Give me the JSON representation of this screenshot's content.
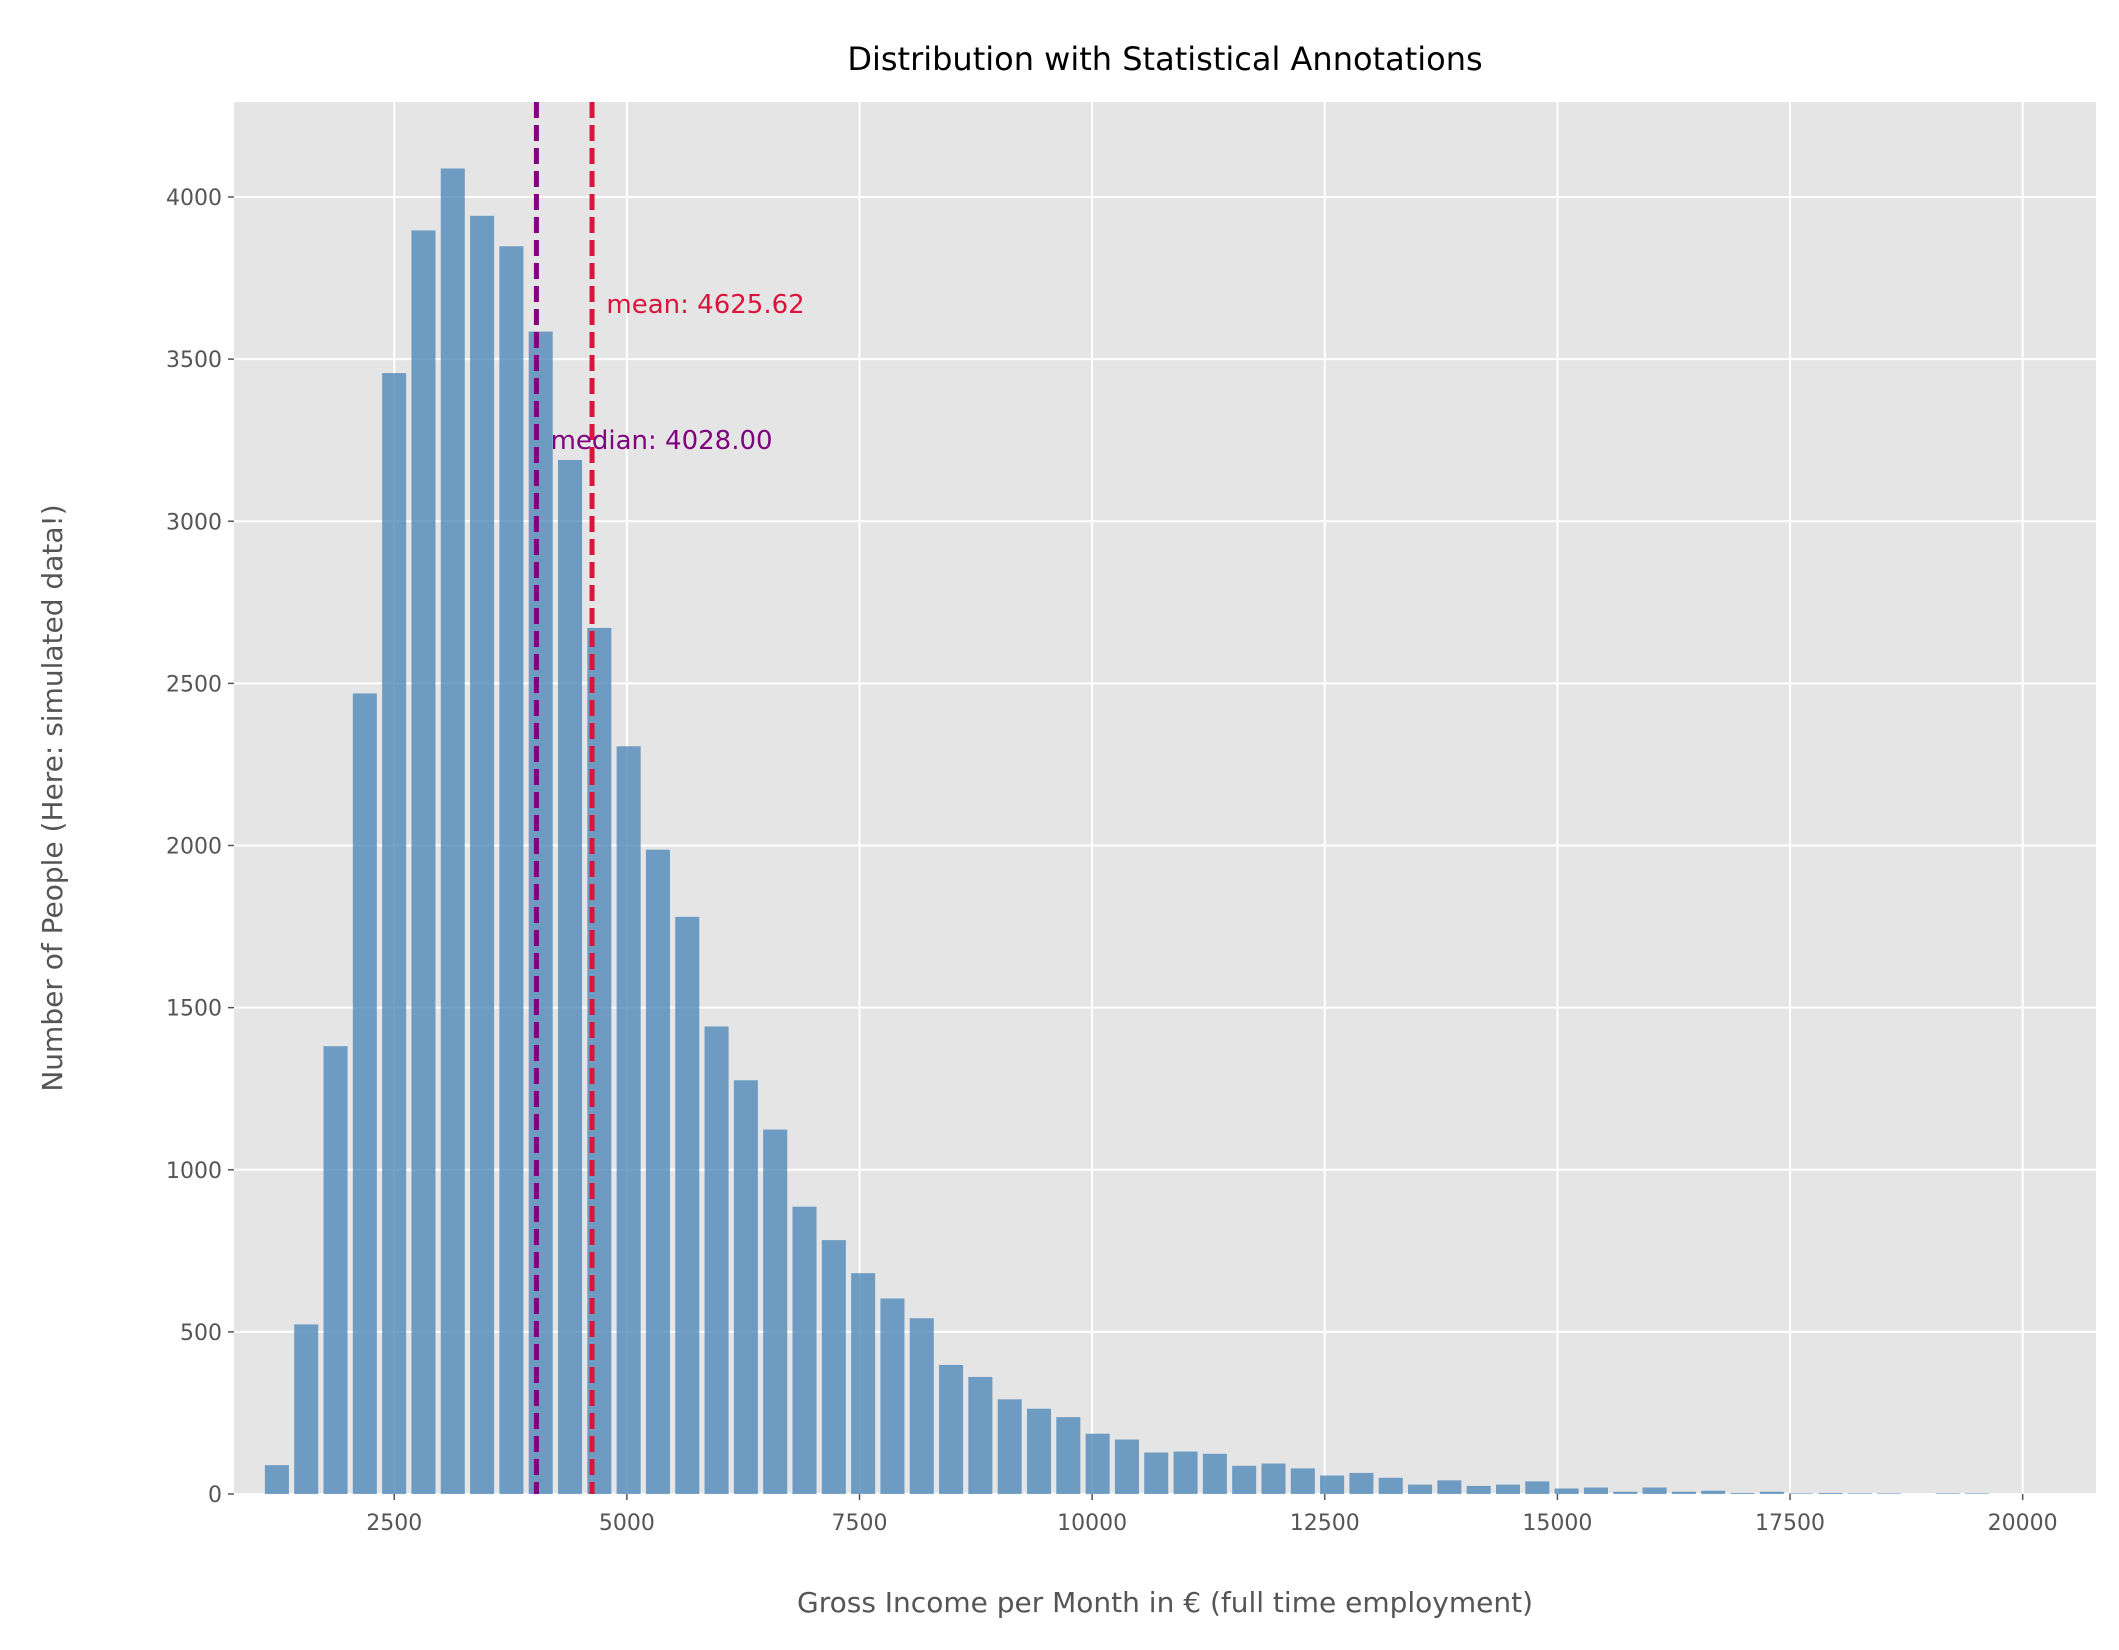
{
  "chart_data": {
    "type": "bar",
    "title": "Distribution with Statistical Annotations",
    "xlabel": "Gross Income per Month in € (full time employment)",
    "ylabel": "Number of People (Here: simulated data!)",
    "xlim": [
      778,
      20788
    ],
    "ylim": [
      0,
      4293
    ],
    "grid": true,
    "bin_width": 315,
    "x_ticks": [
      2500,
      5000,
      7500,
      10000,
      12500,
      15000,
      17500,
      20000
    ],
    "y_ticks": [
      0,
      500,
      1000,
      1500,
      2000,
      2500,
      3000,
      3500,
      4000
    ],
    "bin_centers": [
      1239,
      1554,
      1869,
      2184,
      2499,
      2814,
      3129,
      3444,
      3759,
      4074,
      4389,
      4704,
      5019,
      5334,
      5649,
      5964,
      6279,
      6594,
      6909,
      7224,
      7539,
      7854,
      8169,
      8484,
      8799,
      9114,
      9429,
      9744,
      10059,
      10374,
      10689,
      11004,
      11319,
      11634,
      11949,
      12264,
      12579,
      12894,
      13209,
      13524,
      13839,
      14154,
      14469,
      14784,
      15099,
      15414,
      15729,
      16044,
      16359,
      16674,
      16989,
      17304,
      17619,
      17934,
      18249,
      18564,
      18879,
      19194,
      19509
    ],
    "values": [
      89,
      523,
      1381,
      2469,
      3457,
      3897,
      4088,
      3942,
      3848,
      3585,
      3189,
      2671,
      2306,
      1987,
      1780,
      1442,
      1276,
      1124,
      886,
      783,
      681,
      603,
      542,
      398,
      361,
      292,
      263,
      237,
      186,
      168,
      128,
      131,
      124,
      87,
      94,
      79,
      57,
      65,
      50,
      29,
      42,
      25,
      29,
      39,
      17,
      20,
      7,
      20,
      7,
      10,
      3,
      7,
      2,
      3,
      2,
      2,
      0,
      2,
      2
    ],
    "annotations": [
      {
        "label": "mean: 4625.62",
        "value": 4625.62,
        "text_x": 4780,
        "text_y": 3670,
        "color": "#dc143c"
      },
      {
        "label": "median: 4028.00",
        "value": 4028.0,
        "text_x": 4180,
        "text_y": 3250,
        "color": "#800080"
      }
    ],
    "colors": {
      "bars": "#4682b4",
      "background": "#e5e5e5",
      "grid": "#ffffff"
    }
  }
}
